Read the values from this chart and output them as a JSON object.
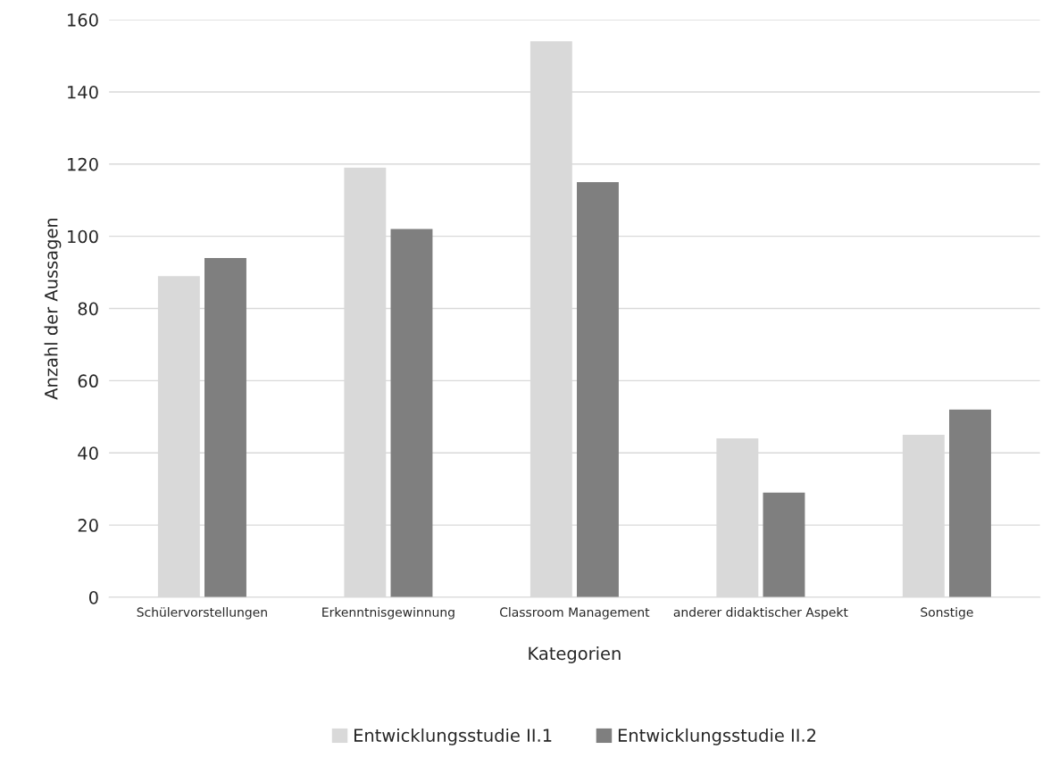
{
  "chart_data": {
    "type": "bar",
    "xlabel": "Kategorien",
    "ylabel": "Anzahl der Aussagen",
    "categories": [
      "Schülervorstellungen",
      "Erkenntnisgewinnung",
      "Classroom Management",
      "anderer didaktischer Aspekt",
      "Sonstige"
    ],
    "series": [
      {
        "name": "Entwicklungsstudie II.1",
        "color": "#d9d9d9",
        "values": [
          89,
          119,
          154,
          44,
          45
        ]
      },
      {
        "name": "Entwicklungsstudie II.2",
        "color": "#7f7f7f",
        "values": [
          94,
          102,
          115,
          29,
          52
        ]
      }
    ],
    "ylim": [
      0,
      160
    ],
    "yticks": [
      0,
      20,
      40,
      60,
      80,
      100,
      120,
      140,
      160
    ],
    "grid": "y",
    "legend": "bottom"
  }
}
